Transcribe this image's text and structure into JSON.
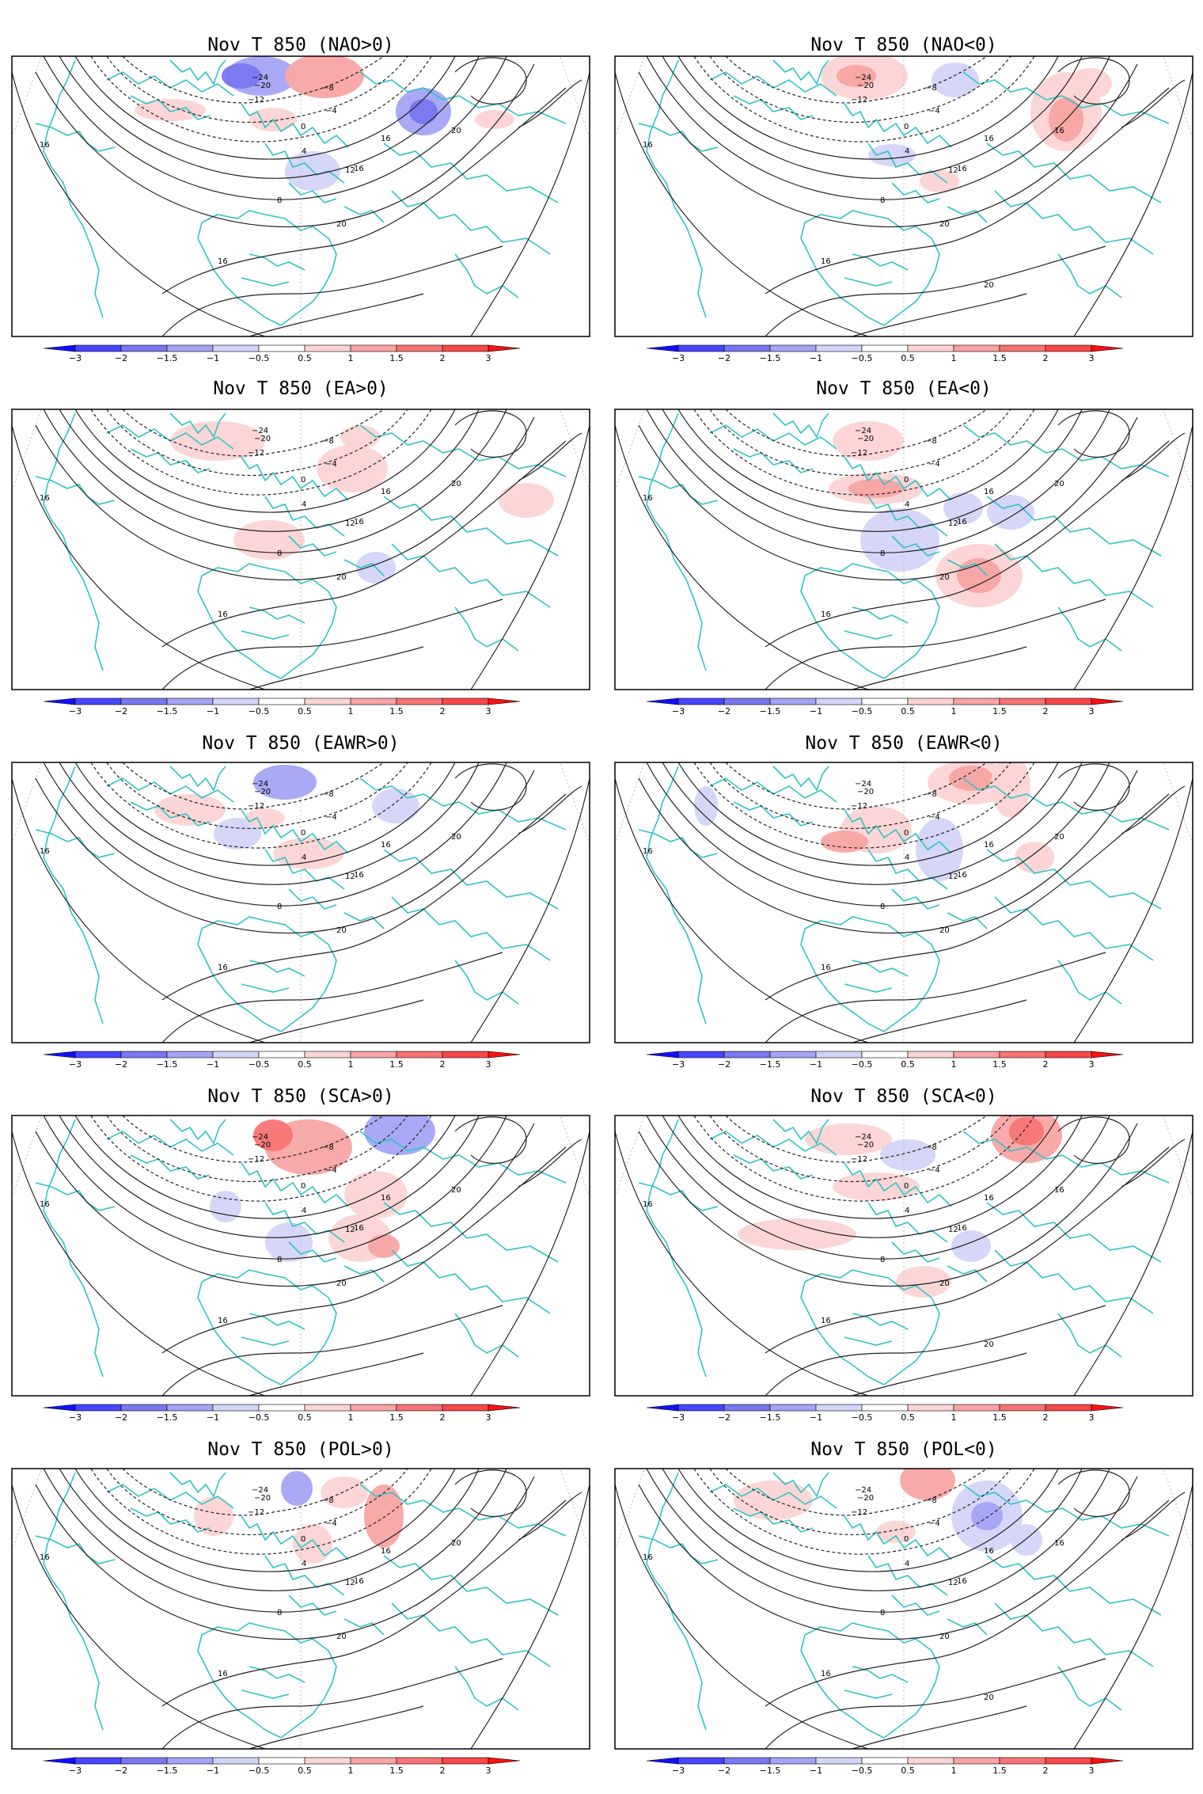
{
  "figure": {
    "colors": {
      "coast": "#2ec4c4",
      "contour": "#222222",
      "grid": "#bbbbbb",
      "frame": "#000000"
    },
    "colorbar": {
      "tick_labels": [
        "-3",
        "-2",
        "-1.5",
        "-1",
        "-0.5",
        "0.5",
        "1",
        "1.5",
        "2",
        "3"
      ],
      "colors": [
        "#1010ff",
        "#4646ff",
        "#7878f0",
        "#a4a4f4",
        "#d4d4f8",
        "#ffffff",
        "#fcd4d4",
        "#f8a4a4",
        "#f87474",
        "#f84848",
        "#ff1010"
      ]
    },
    "panels": [
      {
        "title": "Nov T 850 (NAO>0)",
        "contour_labels": [
          "-24",
          "-20",
          "-12",
          "-8",
          "-4",
          "0",
          "4",
          "8",
          "12",
          "16",
          "16",
          "16",
          "16",
          "20",
          "20"
        ]
      },
      {
        "title": "Nov T 850 (NAO<0)",
        "contour_labels": [
          "-24",
          "-20",
          "-12",
          "-8",
          "-4",
          "0",
          "4",
          "8",
          "12",
          "16",
          "16",
          "16",
          "16",
          "16",
          "20",
          "20"
        ]
      },
      {
        "title": "Nov T 850 (EA>0)",
        "contour_labels": [
          "-24",
          "-20",
          "-12",
          "-8",
          "-4",
          "0",
          "4",
          "8",
          "12",
          "16",
          "16",
          "16",
          "16",
          "20",
          "20"
        ]
      },
      {
        "title": "Nov T 850 (EA<0)",
        "contour_labels": [
          "-24",
          "-20",
          "-12",
          "-8",
          "-4",
          "0",
          "4",
          "8",
          "12",
          "16",
          "16",
          "16",
          "16",
          "20",
          "20"
        ]
      },
      {
        "title": "Nov T 850 (EAWR>0)",
        "contour_labels": [
          "-24",
          "-20",
          "-12",
          "-8",
          "-4",
          "0",
          "4",
          "8",
          "12",
          "16",
          "16",
          "16",
          "16",
          "20",
          "20"
        ]
      },
      {
        "title": "Nov T 850 (EAWR<0)",
        "contour_labels": [
          "-24",
          "-20",
          "-12",
          "-8",
          "-4",
          "0",
          "4",
          "8",
          "12",
          "16",
          "16",
          "16",
          "16",
          "20",
          "20"
        ]
      },
      {
        "title": "Nov T 850 (SCA>0)",
        "contour_labels": [
          "-24",
          "-20",
          "-12",
          "-8",
          "-4",
          "0",
          "4",
          "8",
          "12",
          "16",
          "16",
          "16",
          "16",
          "20",
          "20"
        ]
      },
      {
        "title": "Nov T 850 (SCA<0)",
        "contour_labels": [
          "-24",
          "-20",
          "-12",
          "-8",
          "-4",
          "0",
          "4",
          "8",
          "12",
          "16",
          "16",
          "16",
          "16",
          "16",
          "20",
          "20"
        ]
      },
      {
        "title": "Nov T 850 (POL>0)",
        "contour_labels": [
          "-24",
          "-20",
          "-12",
          "-8",
          "-4",
          "0",
          "4",
          "8",
          "12",
          "16",
          "16",
          "16",
          "16",
          "20",
          "20"
        ]
      },
      {
        "title": "Nov T 850 (POL<0)",
        "contour_labels": [
          "-24",
          "-20",
          "-12",
          "-8",
          "-4",
          "0",
          "4",
          "8",
          "12",
          "16",
          "16",
          "16",
          "16",
          "16",
          "20",
          "20"
        ]
      }
    ]
  }
}
